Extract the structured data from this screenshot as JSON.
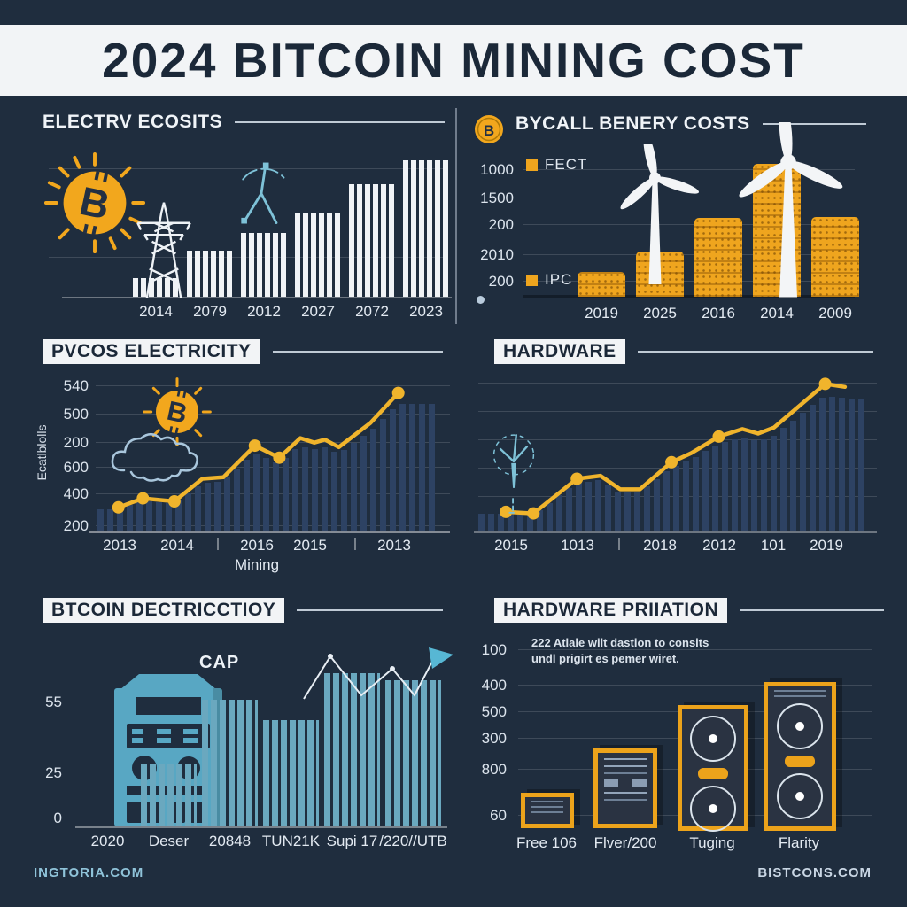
{
  "title": "2024 BITCOIN MINING COST",
  "footer": {
    "left": "INGTORIA.COM",
    "right": "BISTCONS.COM"
  },
  "colors": {
    "background": "#1f2d3e",
    "banner": "#f2f4f6",
    "ink": "#1b2838",
    "orange": "#efa51e",
    "line_yellow": "#f0b42c",
    "teal": "#6fc0d8",
    "bar_white": "#f0f3f6",
    "bar_teal": "#6aa8bf"
  },
  "chart_data": [
    {
      "id": "electricity-costs",
      "type": "bar",
      "title": "ELECTRV ECOSITS",
      "categories": [
        "2014",
        "2079",
        "2012",
        "2027",
        "2072",
        "2023"
      ],
      "values": [
        20,
        50,
        70,
        92,
        123,
        149
      ],
      "ylim": [
        0,
        160
      ],
      "bar_style": "white-striped",
      "icons": [
        "bitcoin-sun",
        "power-pylon",
        "wind-turbine-sketch"
      ]
    },
    {
      "id": "energy-costs",
      "type": "bar",
      "title": "BYCALL BENERY COSTS",
      "categories": [
        "2019",
        "2025",
        "2016",
        "2014",
        "2009"
      ],
      "values": [
        22,
        41,
        71,
        120,
        72
      ],
      "ylim": [
        0,
        200
      ],
      "y_ticks": [
        "1000",
        "1500",
        "200",
        "2010",
        "200"
      ],
      "legend": [
        {
          "label": "FECT",
          "color": "#efa51e"
        },
        {
          "label": "IPC",
          "color": "#efa51e"
        }
      ],
      "bar_style": "coin-stack",
      "icons": [
        "bitcoin-coin",
        "wind-turbine",
        "wind-turbine"
      ]
    },
    {
      "id": "pvcos-electricity",
      "type": "line",
      "title": "PVCOS ELECTRICITY",
      "ylabel": "Ecatlblolls",
      "xlabel": "Mining",
      "y_ticks": [
        "540",
        "500",
        "200",
        "600",
        "400",
        "200"
      ],
      "categories": [
        "2013",
        "2014",
        "2016",
        "2015",
        "2013"
      ],
      "points": [
        [
          6,
          16
        ],
        [
          13,
          22
        ],
        [
          22,
          20
        ],
        [
          30,
          35
        ],
        [
          36,
          36
        ],
        [
          45,
          57
        ],
        [
          52,
          49
        ],
        [
          58,
          62
        ],
        [
          62,
          59
        ],
        [
          65,
          61
        ],
        [
          69,
          56
        ],
        [
          78,
          72
        ],
        [
          86,
          92
        ]
      ],
      "dot_indices": [
        0,
        1,
        2,
        5,
        6,
        12
      ],
      "line_color": "#f0b42c",
      "icons": [
        "bitcoin-sun",
        "cloud"
      ]
    },
    {
      "id": "hardware",
      "type": "line",
      "title": "HARDWARE",
      "categories": [
        "2015",
        "1013",
        "2018",
        "2012",
        "101",
        "2019"
      ],
      "points": [
        [
          7,
          13
        ],
        [
          14,
          12
        ],
        [
          25,
          35
        ],
        [
          31,
          37
        ],
        [
          36,
          28
        ],
        [
          41,
          28
        ],
        [
          49,
          46
        ],
        [
          54,
          52
        ],
        [
          61,
          63
        ],
        [
          67,
          68
        ],
        [
          71,
          65
        ],
        [
          75,
          69
        ],
        [
          88,
          98
        ],
        [
          93,
          96
        ]
      ],
      "dot_indices": [
        0,
        1,
        2,
        6,
        8,
        12
      ],
      "line_color": "#f0b42c",
      "icons": [
        "wind-turbine-dashed"
      ]
    },
    {
      "id": "btcoin-dectricctioy",
      "type": "bar",
      "title": "BTCOIN DECTRICCTIOY",
      "annotation": "CAP",
      "categories": [
        "2020",
        "Deser",
        "20848",
        "TUN21K",
        "Supi 17",
        "/220//UTB"
      ],
      "values": [
        0,
        28,
        57,
        48,
        69,
        66
      ],
      "ylim": [
        0,
        75
      ],
      "y_ticks": [
        "55",
        "25",
        "0"
      ],
      "bar_style": "teal-striped",
      "icons": [
        "mining-rig",
        "trend-arrow"
      ]
    },
    {
      "id": "hardware-priiation",
      "type": "pictorial-bar",
      "title": "HARDWARE PRIIATION",
      "annotation_lines": [
        "222 Atlale wilt dastion to consits",
        "undl prigirt es pemer wiret."
      ],
      "categories": [
        "Free 106",
        "Flver/200",
        "Tuging",
        "Flarity"
      ],
      "values": [
        15,
        33,
        52,
        62
      ],
      "y_ticks": [
        "100",
        "400",
        "500",
        "300",
        "800",
        "60"
      ],
      "icons": [
        "asic-miner-small",
        "asic-miner-medium",
        "asic-miner-large",
        "asic-miner-xl"
      ]
    }
  ]
}
